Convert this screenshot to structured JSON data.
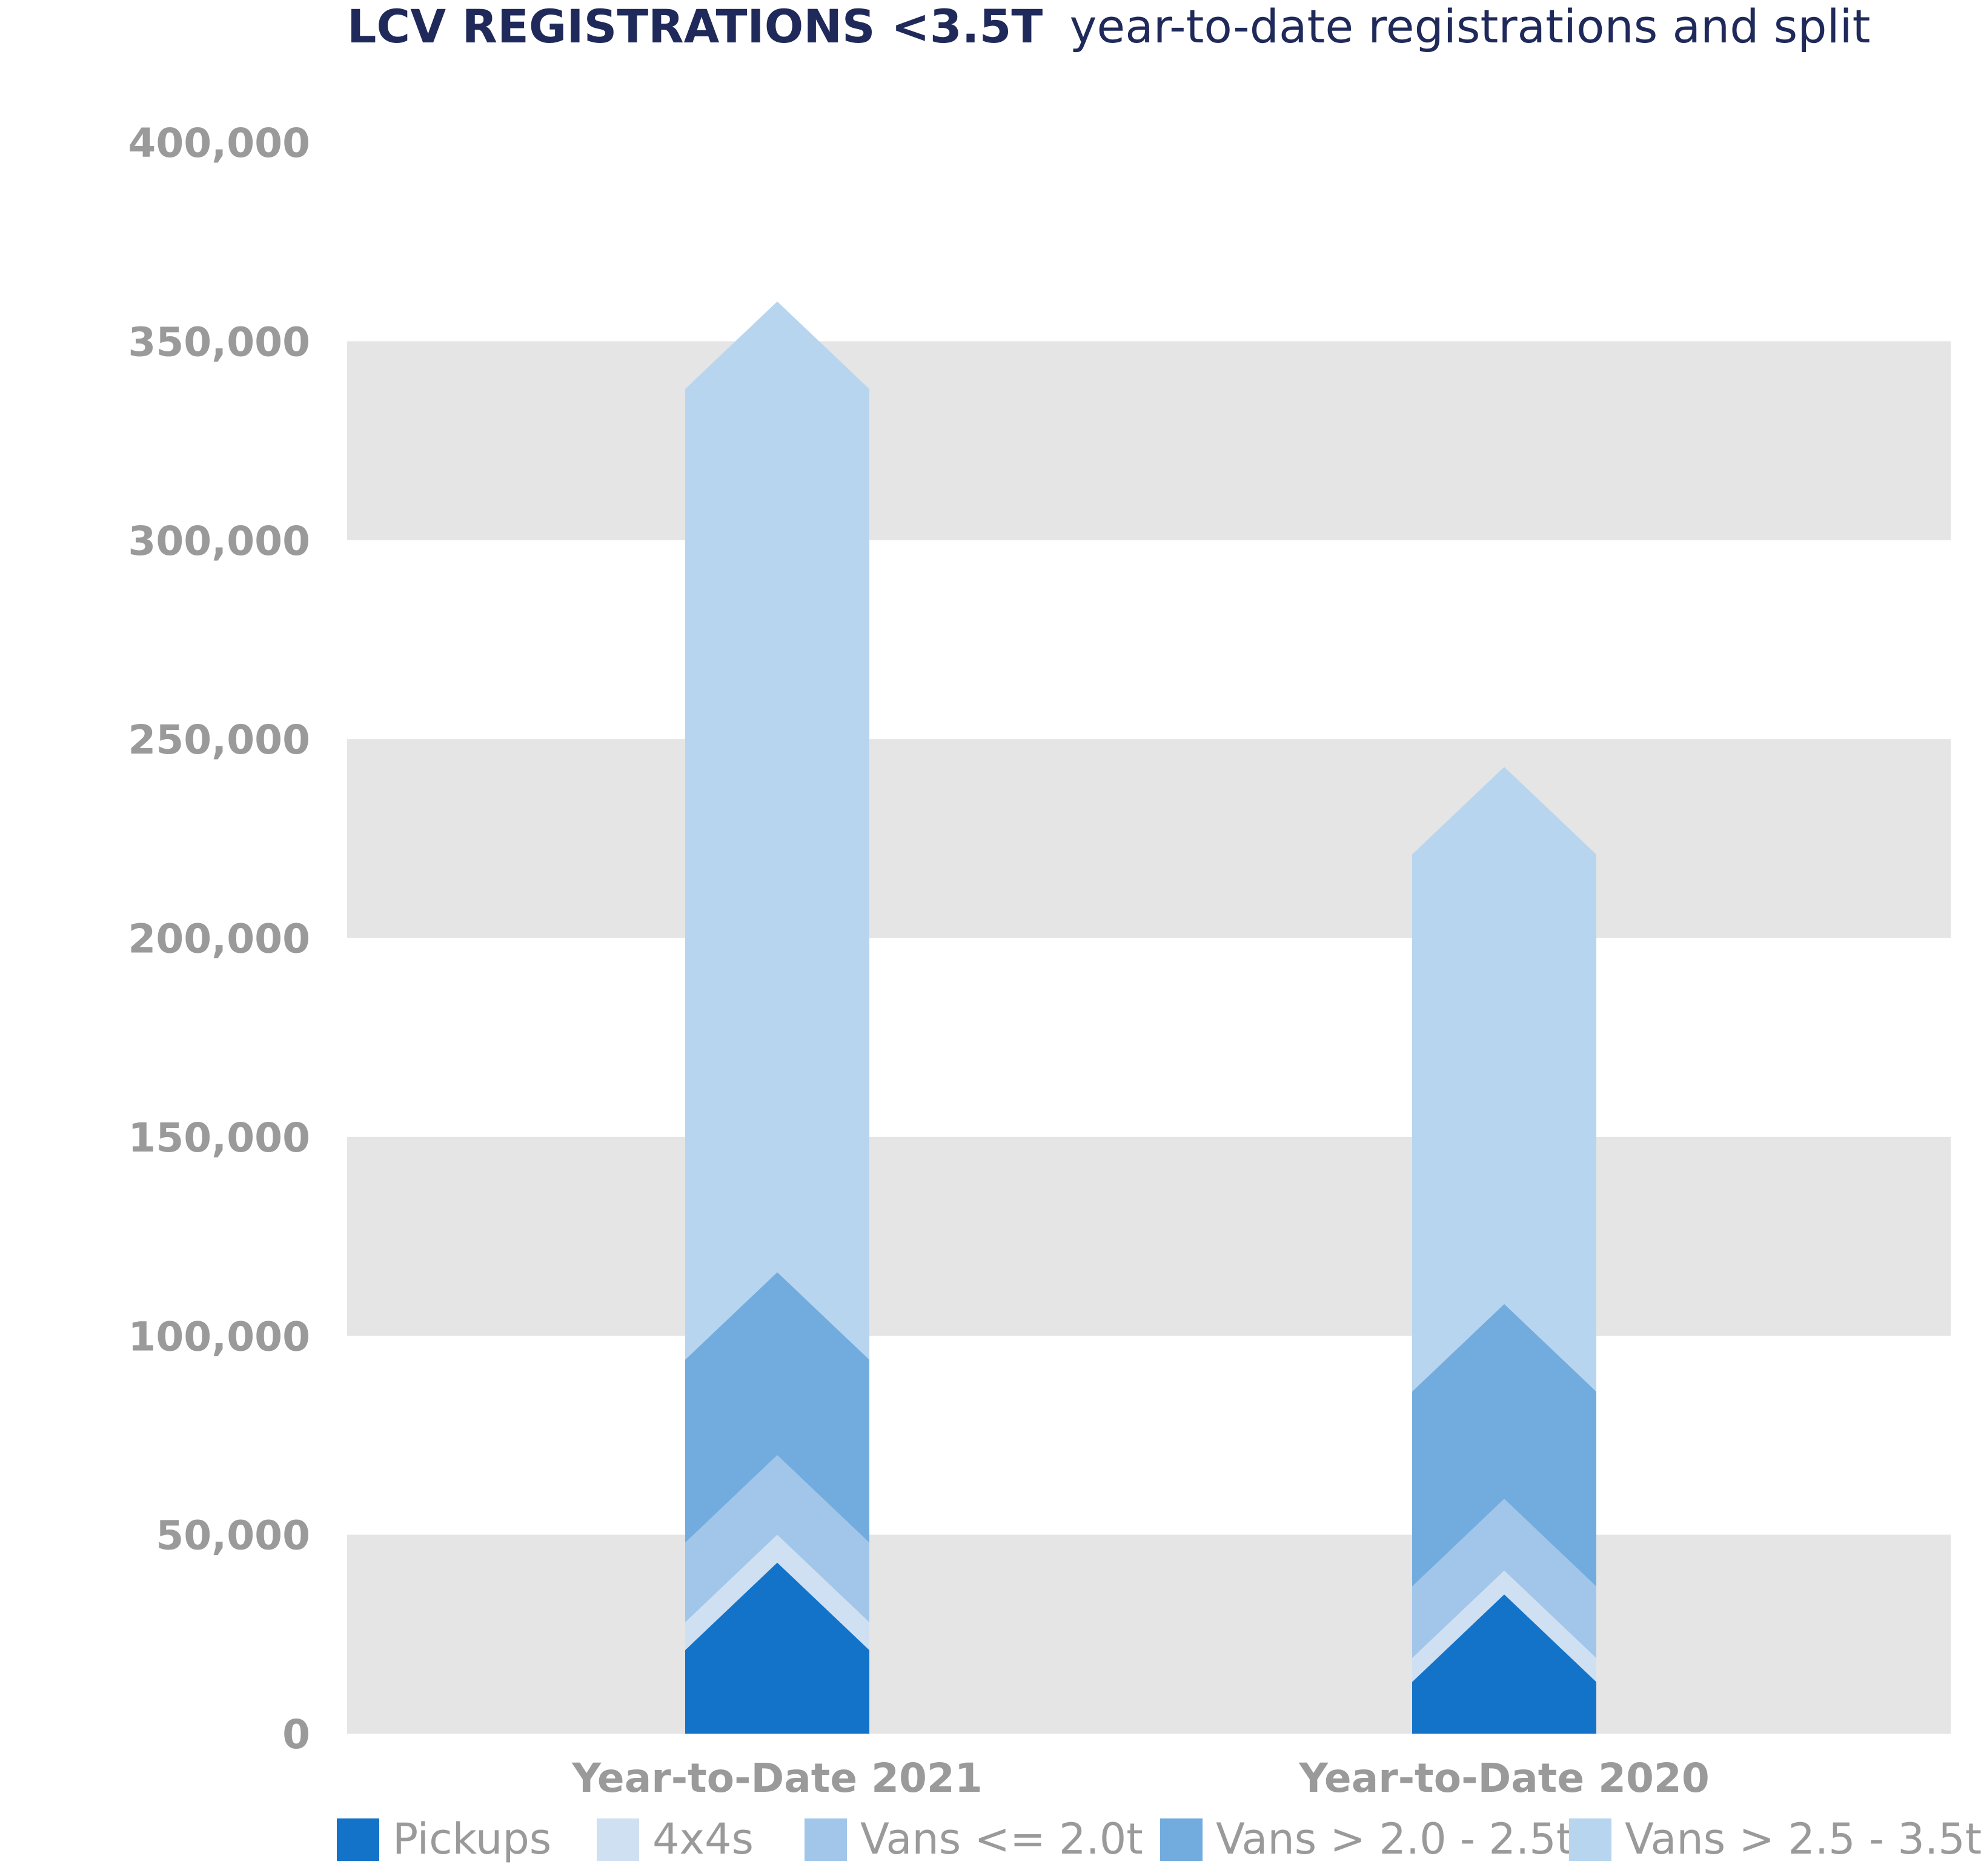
{
  "chart_data": {
    "type": "bar",
    "title_bold": "LCV REGISTRATIONS <3.5T",
    "title_rest": "year-to-date registrations and split",
    "categories": [
      "Year-to-Date 2021",
      "Year-to-Date 2020"
    ],
    "ylim": [
      0,
      400000
    ],
    "yticks": [
      0,
      50000,
      100000,
      150000,
      200000,
      250000,
      300000,
      350000,
      400000
    ],
    "ytick_labels": [
      "0",
      "50,000",
      "100,000",
      "150,000",
      "200,000",
      "250,000",
      "300,000",
      "350,000",
      "400,000"
    ],
    "stacked": true,
    "grid_bands": true,
    "legend_position": "bottom",
    "series": [
      {
        "name": "Pickups",
        "color": "#1273c9",
        "values": [
          43000,
          35000
        ]
      },
      {
        "name": "4x4s",
        "color": "#cfe0f3",
        "values": [
          7000,
          6000
        ]
      },
      {
        "name": "Vans <= 2.0t",
        "color": "#a1c6e9",
        "values": [
          20000,
          18000
        ]
      },
      {
        "name": "Vans > 2.0 - 2.5t",
        "color": "#72acdf",
        "values": [
          46000,
          49000
        ]
      },
      {
        "name": "Vans > 2.5 - 3.5t",
        "color": "#b7d5ee",
        "values": [
          244000,
          135000
        ]
      }
    ]
  }
}
